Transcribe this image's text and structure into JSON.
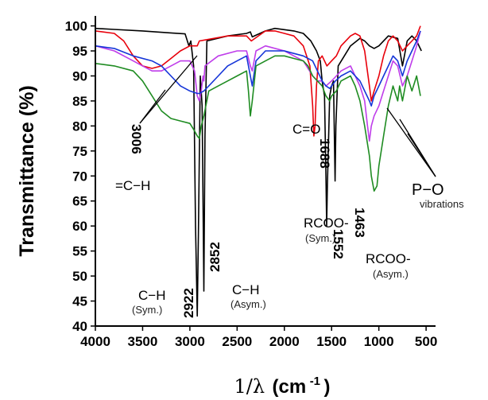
{
  "chart_data": {
    "type": "line",
    "title": "",
    "xlabel_symbol": "1/λ",
    "xlabel_unit": "(cm",
    "xlabel_exp": "-1",
    "xlabel_close": ")",
    "ylabel": "Transmittance (%)",
    "xlim": [
      4000,
      400
    ],
    "ylim": [
      40,
      102
    ],
    "x_ticks": [
      4000,
      3500,
      3000,
      2500,
      2000,
      1500,
      1000,
      500
    ],
    "y_ticks": [
      40,
      45,
      50,
      55,
      60,
      65,
      70,
      75,
      80,
      85,
      90,
      95,
      100
    ],
    "grid": false,
    "series": [
      {
        "color": "#000000",
        "points": [
          [
            4000,
            99.5
          ],
          [
            3800,
            99.3
          ],
          [
            3500,
            99
          ],
          [
            3200,
            98.6
          ],
          [
            3050,
            98.4
          ],
          [
            3010,
            96
          ],
          [
            2990,
            97
          ],
          [
            2960,
            92
          ],
          [
            2940,
            60
          ],
          [
            2922,
            42
          ],
          [
            2910,
            58
          ],
          [
            2890,
            90
          ],
          [
            2870,
            84
          ],
          [
            2852,
            47
          ],
          [
            2840,
            78
          ],
          [
            2820,
            97
          ],
          [
            2600,
            98
          ],
          [
            2400,
            98.5
          ],
          [
            2360,
            98.8
          ],
          [
            2340,
            97.8
          ],
          [
            2200,
            99
          ],
          [
            2100,
            99.5
          ],
          [
            1900,
            99
          ],
          [
            1800,
            98.5
          ],
          [
            1720,
            97
          ],
          [
            1690,
            96
          ],
          [
            1660,
            95
          ],
          [
            1620,
            93
          ],
          [
            1600,
            89
          ],
          [
            1575,
            86
          ],
          [
            1560,
            70
          ],
          [
            1552,
            60
          ],
          [
            1545,
            68
          ],
          [
            1520,
            86
          ],
          [
            1500,
            88
          ],
          [
            1480,
            89
          ],
          [
            1463,
            69
          ],
          [
            1455,
            80
          ],
          [
            1430,
            92
          ],
          [
            1300,
            96
          ],
          [
            1200,
            97.5
          ],
          [
            1150,
            97
          ],
          [
            1100,
            96
          ],
          [
            1050,
            95.5
          ],
          [
            1000,
            96
          ],
          [
            900,
            98
          ],
          [
            800,
            97.5
          ],
          [
            750,
            92
          ],
          [
            730,
            94
          ],
          [
            700,
            97
          ],
          [
            650,
            98
          ],
          [
            600,
            97
          ],
          [
            550,
            95
          ]
        ]
      },
      {
        "color": "#e8000b",
        "points": [
          [
            4000,
            99
          ],
          [
            3800,
            98.5
          ],
          [
            3700,
            97
          ],
          [
            3600,
            94
          ],
          [
            3500,
            92
          ],
          [
            3400,
            91.5
          ],
          [
            3300,
            92
          ],
          [
            3200,
            93.5
          ],
          [
            3100,
            95
          ],
          [
            3000,
            96
          ],
          [
            2922,
            96
          ],
          [
            2900,
            97
          ],
          [
            2600,
            98
          ],
          [
            2400,
            98
          ],
          [
            2350,
            97
          ],
          [
            2200,
            99
          ],
          [
            2100,
            99
          ],
          [
            2000,
            98.5
          ],
          [
            1900,
            98
          ],
          [
            1800,
            96
          ],
          [
            1730,
            92
          ],
          [
            1700,
            84
          ],
          [
            1688,
            78
          ],
          [
            1675,
            80
          ],
          [
            1660,
            88
          ],
          [
            1640,
            93
          ],
          [
            1600,
            94
          ],
          [
            1550,
            92
          ],
          [
            1500,
            93
          ],
          [
            1450,
            94
          ],
          [
            1400,
            96
          ],
          [
            1300,
            98
          ],
          [
            1250,
            98.5
          ],
          [
            1200,
            98
          ],
          [
            1150,
            95
          ],
          [
            1100,
            88
          ],
          [
            1080,
            85
          ],
          [
            1050,
            87
          ],
          [
            1000,
            90
          ],
          [
            950,
            94
          ],
          [
            900,
            97
          ],
          [
            850,
            98
          ],
          [
            800,
            97
          ],
          [
            750,
            95
          ],
          [
            700,
            96
          ],
          [
            650,
            97
          ],
          [
            600,
            98
          ],
          [
            560,
            100
          ]
        ]
      },
      {
        "color": "#bf3dea",
        "points": [
          [
            4000,
            96
          ],
          [
            3800,
            95
          ],
          [
            3600,
            93
          ],
          [
            3500,
            92
          ],
          [
            3400,
            91
          ],
          [
            3300,
            91
          ],
          [
            3200,
            92
          ],
          [
            3100,
            93
          ],
          [
            3000,
            93
          ],
          [
            2950,
            91
          ],
          [
            2922,
            86
          ],
          [
            2900,
            85
          ],
          [
            2880,
            87
          ],
          [
            2860,
            90
          ],
          [
            2852,
            89
          ],
          [
            2840,
            92
          ],
          [
            2700,
            94
          ],
          [
            2500,
            95
          ],
          [
            2400,
            95
          ],
          [
            2360,
            92
          ],
          [
            2340,
            91
          ],
          [
            2300,
            95
          ],
          [
            2200,
            96
          ],
          [
            2000,
            95
          ],
          [
            1900,
            94
          ],
          [
            1800,
            93
          ],
          [
            1700,
            90
          ],
          [
            1650,
            89
          ],
          [
            1600,
            89
          ],
          [
            1560,
            88
          ],
          [
            1500,
            89
          ],
          [
            1450,
            90
          ],
          [
            1400,
            91
          ],
          [
            1300,
            92
          ],
          [
            1250,
            90
          ],
          [
            1200,
            88
          ],
          [
            1150,
            85
          ],
          [
            1120,
            80
          ],
          [
            1100,
            77
          ],
          [
            1080,
            80
          ],
          [
            1050,
            82
          ],
          [
            1000,
            84
          ],
          [
            950,
            87
          ],
          [
            900,
            90
          ],
          [
            850,
            93
          ],
          [
            800,
            92
          ],
          [
            750,
            88
          ],
          [
            700,
            90
          ],
          [
            650,
            93
          ],
          [
            600,
            96
          ],
          [
            560,
            99
          ]
        ]
      },
      {
        "color": "#1535d8",
        "points": [
          [
            4000,
            96
          ],
          [
            3800,
            95.5
          ],
          [
            3600,
            94
          ],
          [
            3400,
            93
          ],
          [
            3300,
            92
          ],
          [
            3200,
            90
          ],
          [
            3100,
            88
          ],
          [
            3000,
            87
          ],
          [
            2922,
            86.5
          ],
          [
            2900,
            86.5
          ],
          [
            2852,
            87
          ],
          [
            2800,
            88
          ],
          [
            2700,
            90
          ],
          [
            2600,
            92
          ],
          [
            2500,
            93
          ],
          [
            2400,
            94
          ],
          [
            2360,
            90
          ],
          [
            2340,
            88
          ],
          [
            2300,
            93
          ],
          [
            2200,
            95
          ],
          [
            2100,
            95
          ],
          [
            2000,
            95
          ],
          [
            1900,
            94.5
          ],
          [
            1800,
            94
          ],
          [
            1700,
            93
          ],
          [
            1650,
            91
          ],
          [
            1600,
            89
          ],
          [
            1560,
            88
          ],
          [
            1520,
            87.5
          ],
          [
            1500,
            88
          ],
          [
            1460,
            89
          ],
          [
            1400,
            90
          ],
          [
            1300,
            91
          ],
          [
            1250,
            90
          ],
          [
            1200,
            89
          ],
          [
            1150,
            87
          ],
          [
            1100,
            85
          ],
          [
            1080,
            84
          ],
          [
            1050,
            86
          ],
          [
            1000,
            88
          ],
          [
            950,
            90
          ],
          [
            900,
            92
          ],
          [
            850,
            94
          ],
          [
            800,
            93
          ],
          [
            750,
            90
          ],
          [
            700,
            93
          ],
          [
            650,
            95
          ],
          [
            600,
            97
          ],
          [
            560,
            99
          ]
        ]
      },
      {
        "color": "#1f8c22",
        "points": [
          [
            4000,
            92.5
          ],
          [
            3800,
            92
          ],
          [
            3600,
            91
          ],
          [
            3500,
            89
          ],
          [
            3400,
            86
          ],
          [
            3300,
            83
          ],
          [
            3200,
            81.5
          ],
          [
            3100,
            81
          ],
          [
            3000,
            80.5
          ],
          [
            2950,
            79
          ],
          [
            2922,
            78
          ],
          [
            2900,
            77.5
          ],
          [
            2880,
            80
          ],
          [
            2852,
            82
          ],
          [
            2800,
            87
          ],
          [
            2700,
            88
          ],
          [
            2600,
            89
          ],
          [
            2500,
            90
          ],
          [
            2400,
            91
          ],
          [
            2380,
            87
          ],
          [
            2360,
            82
          ],
          [
            2340,
            85
          ],
          [
            2300,
            92
          ],
          [
            2200,
            93
          ],
          [
            2100,
            94
          ],
          [
            2000,
            94
          ],
          [
            1900,
            93.5
          ],
          [
            1800,
            93
          ],
          [
            1750,
            92
          ],
          [
            1700,
            90
          ],
          [
            1650,
            89
          ],
          [
            1600,
            88
          ],
          [
            1560,
            86
          ],
          [
            1520,
            85
          ],
          [
            1500,
            86
          ],
          [
            1450,
            87
          ],
          [
            1400,
            89
          ],
          [
            1300,
            90
          ],
          [
            1250,
            88
          ],
          [
            1200,
            85
          ],
          [
            1150,
            80
          ],
          [
            1100,
            74
          ],
          [
            1080,
            70
          ],
          [
            1050,
            67
          ],
          [
            1020,
            68
          ],
          [
            1000,
            72
          ],
          [
            950,
            78
          ],
          [
            900,
            84
          ],
          [
            850,
            88
          ],
          [
            800,
            85
          ],
          [
            780,
            88
          ],
          [
            750,
            85
          ],
          [
            700,
            90
          ],
          [
            650,
            87
          ],
          [
            600,
            90
          ],
          [
            560,
            86
          ]
        ]
      }
    ],
    "annotations": [
      {
        "id": "a3006",
        "text": "3006"
      },
      {
        "id": "ach",
        "text": "=C−H"
      },
      {
        "id": "a2922",
        "text": "2922"
      },
      {
        "id": "a2852",
        "text": "2852"
      },
      {
        "id": "achs",
        "text": "C−H"
      },
      {
        "id": "achs_sub",
        "text": "(Sym.)"
      },
      {
        "id": "acha",
        "text": "C−H"
      },
      {
        "id": "acha_sub",
        "text": "(Asym.)"
      },
      {
        "id": "aco",
        "text": "C=O"
      },
      {
        "id": "a1688",
        "text": "1688"
      },
      {
        "id": "a1552",
        "text": "1552"
      },
      {
        "id": "a1463",
        "text": "1463"
      },
      {
        "id": "arcoos",
        "text": "RCOO-"
      },
      {
        "id": "arcoos_sub",
        "text": "(Sym.)"
      },
      {
        "id": "arcooa",
        "text": "RCOO-"
      },
      {
        "id": "arcooa_sub",
        "text": "(Asym.)"
      },
      {
        "id": "apo",
        "text": "P−O"
      },
      {
        "id": "apo_sub",
        "text": "vibrations"
      }
    ]
  }
}
